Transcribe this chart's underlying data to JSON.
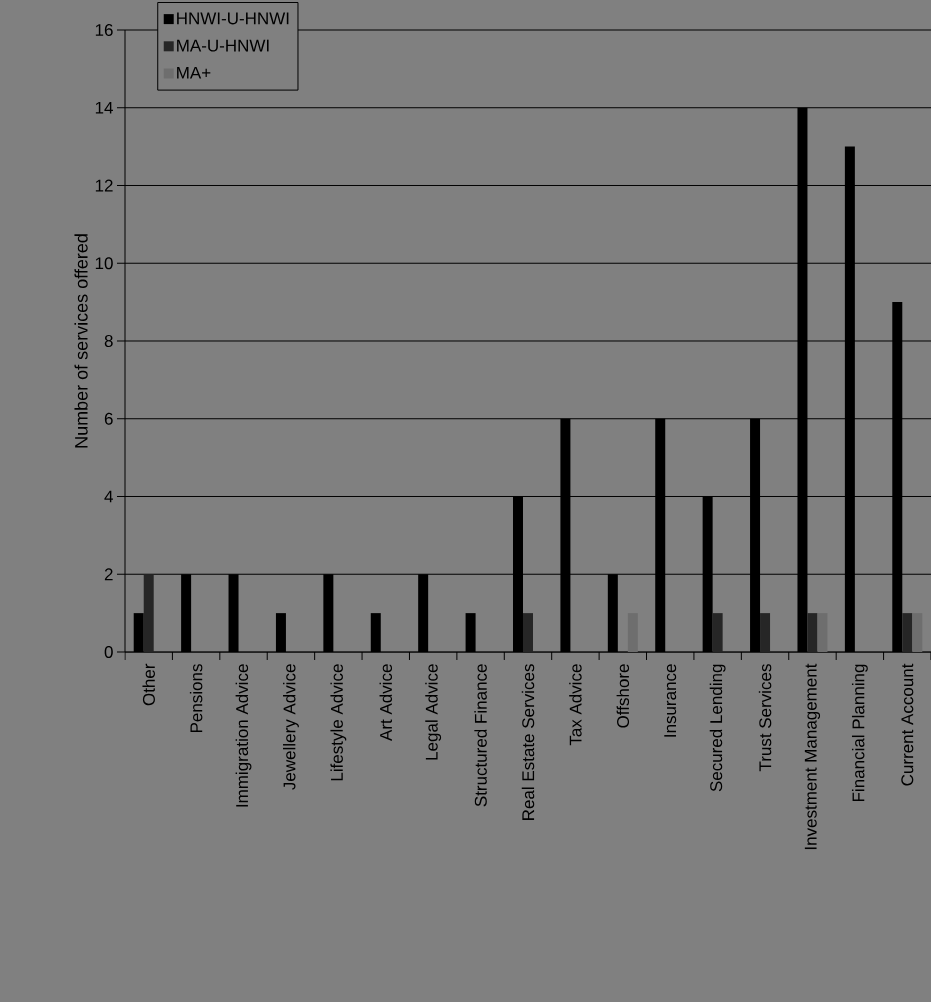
{
  "chart_data": {
    "type": "bar",
    "ylabel": "Number of services offered",
    "categories": [
      "Other",
      "Pensions",
      "Immigration Advice",
      "Jewellery Advice",
      "Lifestyle Advice",
      "Art Advice",
      "Legal Advice",
      "Structured Finance",
      "Real Estate Services",
      "Tax Advice",
      "Offshore",
      "Insurance",
      "Secured Lending",
      "Trust Services",
      "Investment Management",
      "Financial Planning",
      "Current Account"
    ],
    "series": [
      {
        "name": "HNWI-U-HNWI",
        "color": "#000000",
        "values": [
          1,
          2,
          2,
          1,
          2,
          1,
          2,
          1,
          4,
          6,
          2,
          6,
          4,
          6,
          14,
          13,
          9
        ]
      },
      {
        "name": "MA-U-HNWI",
        "color": "#262626",
        "values": [
          2,
          0,
          0,
          0,
          0,
          0,
          0,
          0,
          1,
          0,
          0,
          0,
          1,
          1,
          1,
          0,
          1
        ]
      },
      {
        "name": "MA+",
        "color": "#6e6e6e",
        "values": [
          0,
          0,
          0,
          0,
          0,
          0,
          0,
          0,
          0,
          0,
          1,
          0,
          0,
          0,
          1,
          0,
          1
        ]
      }
    ],
    "ylim": [
      0,
      16
    ],
    "yticks": [
      0,
      2,
      4,
      6,
      8,
      10,
      12,
      14,
      16
    ],
    "grid": "y",
    "legend": "top left"
  }
}
